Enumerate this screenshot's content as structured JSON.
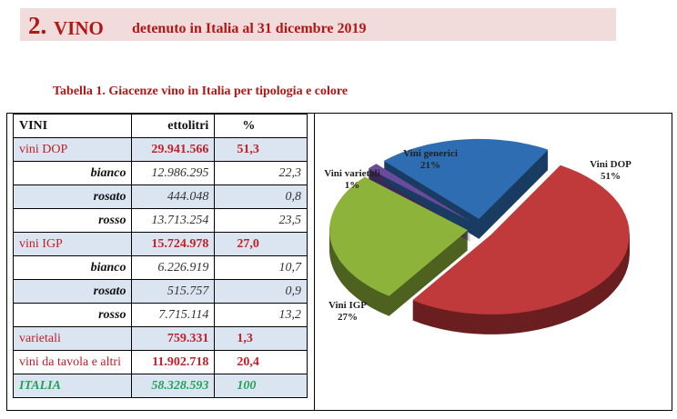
{
  "header": {
    "number": "2.",
    "title": "VINO",
    "subtitle": "detenuto in Italia al 31 dicembre 2019"
  },
  "caption": "Tabella 1. Giacenze vino in Italia per tipologia e colore",
  "table": {
    "columns": [
      "VINI",
      "ettolitri",
      "%"
    ],
    "rows": [
      {
        "type": "main",
        "label": "vini DOP",
        "hl": "29.941.566",
        "pct": "51,3"
      },
      {
        "type": "sub",
        "label": "bianco",
        "hl": "12.986.295",
        "pct": "22,3"
      },
      {
        "type": "sub",
        "label": "rosato",
        "hl": "444.048",
        "pct": "0,8"
      },
      {
        "type": "sub",
        "label": "rosso",
        "hl": "13.713.254",
        "pct": "23,5"
      },
      {
        "type": "main",
        "label": "vini IGP",
        "hl": "15.724.978",
        "pct": "27,0"
      },
      {
        "type": "sub",
        "label": "bianco",
        "hl": "6.226.919",
        "pct": "10,7"
      },
      {
        "type": "sub",
        "label": "rosato",
        "hl": "515.757",
        "pct": "0,9"
      },
      {
        "type": "sub",
        "label": "rosso",
        "hl": "7.715.114",
        "pct": "13,2"
      },
      {
        "type": "main",
        "label": "varietali",
        "hl": "759.331",
        "pct": "1,3"
      },
      {
        "type": "main",
        "label": "vini da tavola e altri",
        "hl": "11.902.718",
        "pct": "20,4"
      },
      {
        "type": "tot",
        "label": "ITALIA",
        "hl": "58.328.593",
        "pct": "100"
      }
    ]
  },
  "chart_data": {
    "type": "pie",
    "title": "",
    "slices": [
      {
        "name": "Vini DOP",
        "label": "51%",
        "value": 51.3,
        "color": "#c0393b"
      },
      {
        "name": "Vini IGP",
        "label": "27%",
        "value": 27.0,
        "color": "#8db33a"
      },
      {
        "name": "Vini varietali",
        "label": "1%",
        "value": 1.3,
        "color": "#6a4a9c"
      },
      {
        "name": "Vini generici",
        "label": "21%",
        "value": 20.4,
        "color": "#2f6db3"
      }
    ]
  }
}
